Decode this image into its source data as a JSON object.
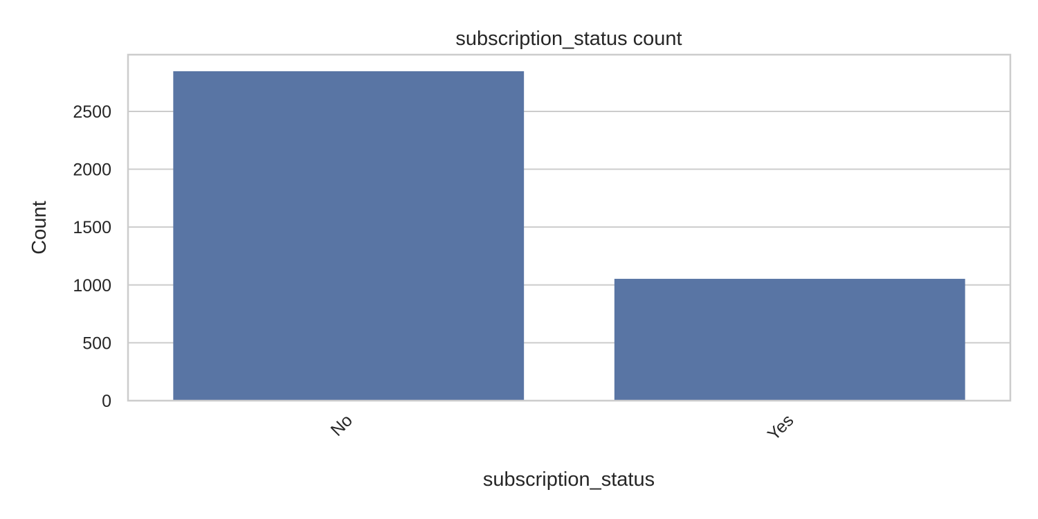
{
  "chart_data": {
    "type": "bar",
    "title": "subscription_status count",
    "xlabel": "subscription_status",
    "ylabel": "Count",
    "categories": [
      "No",
      "Yes"
    ],
    "values": [
      2847,
      1053
    ],
    "ylim": [
      0,
      2990
    ],
    "yticks": [
      0,
      500,
      1000,
      1500,
      2000,
      2500
    ],
    "grid": true,
    "bar_color": "#5975a4",
    "grid_color": "#cccccc",
    "spine_color": "#cccccc",
    "background": "#ffffff"
  }
}
